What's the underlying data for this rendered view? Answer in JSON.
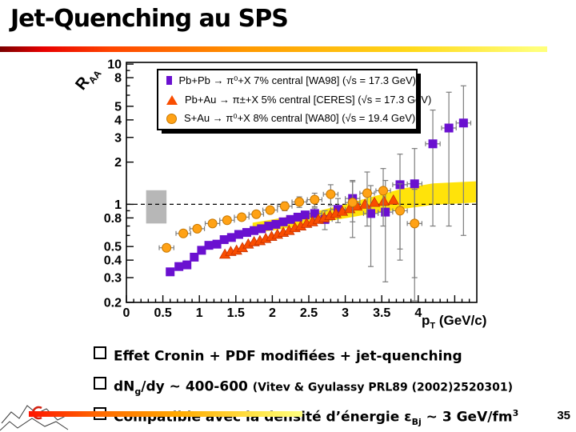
{
  "slide": {
    "title": "Jet-Quenching au SPS",
    "page_number": "35",
    "bullet_icon": "ballot-box",
    "bullets": [
      {
        "pre": "Effet Cronin + PDF modifiées +  jet-quenching"
      },
      {
        "pre": "dN",
        "sub": "g",
        "mid": "/dy ~ 400-600 ",
        "note": "(Vitev & Gyulassy PRL89 (2002)2520301)"
      },
      {
        "pre": "Compatible avec la densité d’énergie ε",
        "sub": "Bj",
        "mid": " ~ 3 GeV/fm",
        "sup": "3"
      }
    ],
    "colors": {
      "title_rule": [
        "#7a0000",
        "#e80000",
        "#ff9900",
        "#ffff7a"
      ],
      "bottom_rule": [
        "#ff1500",
        "#ffaa00",
        "#ffff80"
      ],
      "logo_red": "#d22211"
    }
  },
  "chart_data": {
    "type": "scatter",
    "title": "",
    "xlabel": "pT (GeV/c)",
    "ylabel": "RAA",
    "xlabel_main": "p",
    "xlabel_sub": "T",
    "xlabel_unit": " (GeV/c)",
    "ylabel_main": "R",
    "ylabel_sub": "AA",
    "xlim": [
      0,
      4.8
    ],
    "ylim": [
      0.2,
      10
    ],
    "yscale": "log",
    "grid": false,
    "legend_position": "top-left inside frame",
    "reference_line_y": 1,
    "error_bar_color": "#7d7d7d",
    "x_label_values": [
      0,
      0.5,
      1,
      1.5,
      2,
      2.5,
      3,
      3.5,
      4
    ],
    "x_tick_labels": [
      "0",
      "0.5",
      "1",
      "1.5",
      "2",
      "2.5",
      "3",
      "3.5",
      "4"
    ],
    "y_label_values": [
      10,
      8,
      5,
      4,
      3,
      2,
      1,
      0.8,
      0.5,
      0.4,
      0.3,
      0.2
    ],
    "y_tick_labels": [
      "10",
      "8",
      "5",
      "4",
      "3",
      "2",
      "1",
      "0.8",
      "0.5",
      "0.4",
      "0.3",
      "0.2"
    ],
    "y_minor_ticks": [
      0.2,
      0.3,
      0.4,
      0.5,
      0.6,
      0.7,
      0.8,
      0.9,
      1,
      2,
      3,
      4,
      5,
      6,
      7,
      8,
      9,
      10
    ],
    "sys_error_box": {
      "x0": 0.27,
      "x1": 0.55,
      "y0": 0.73,
      "y1": 1.26,
      "color": "#b7b7b7"
    },
    "theory_band": {
      "color": "#ffe30a",
      "x": [
        1.73,
        2.0,
        2.3,
        2.6,
        2.9,
        3.2,
        3.5,
        3.8,
        4.2,
        4.79
      ],
      "top": [
        0.74,
        0.78,
        0.83,
        0.89,
        0.97,
        1.07,
        1.18,
        1.3,
        1.41,
        1.46
      ],
      "bottom": [
        0.62,
        0.65,
        0.69,
        0.73,
        0.78,
        0.83,
        0.88,
        0.93,
        0.99,
        1.03
      ]
    },
    "series": [
      {
        "name": "Pb+Pb → π⁰+X  7%  central [WA98] (√s = 17.3 GeV)",
        "marker": "square",
        "color": "#6a10d0",
        "x": [
          0.6,
          0.72,
          0.83,
          0.93,
          1.03,
          1.13,
          1.24,
          1.34,
          1.44,
          1.54,
          1.65,
          1.75,
          1.85,
          1.95,
          2.05,
          2.15,
          2.25,
          2.35,
          2.45,
          2.58,
          2.72,
          2.9,
          3.1,
          3.35,
          3.55,
          3.75,
          3.95,
          4.2,
          4.42,
          4.62
        ],
        "y": [
          0.33,
          0.36,
          0.37,
          0.42,
          0.47,
          0.51,
          0.52,
          0.56,
          0.58,
          0.61,
          0.63,
          0.65,
          0.67,
          0.7,
          0.72,
          0.75,
          0.78,
          0.81,
          0.84,
          0.86,
          0.78,
          0.92,
          1.1,
          0.86,
          0.88,
          1.38,
          1.4,
          2.7,
          3.5,
          3.8
        ],
        "yerr": [
          0,
          0,
          0,
          0,
          0,
          0,
          0,
          0,
          0,
          0,
          0,
          0,
          0,
          0,
          0,
          0,
          0,
          0.03,
          0.05,
          0.08,
          0.12,
          0.18,
          0.35,
          0.5,
          0.6,
          0.9,
          1.1,
          2.0,
          2.8,
          3.2
        ],
        "xerr": [
          0.05,
          0.05,
          0.05,
          0.05,
          0.05,
          0.05,
          0.05,
          0.05,
          0.05,
          0.05,
          0.05,
          0.05,
          0.05,
          0.05,
          0.05,
          0.05,
          0.05,
          0.05,
          0.05,
          0.1,
          0.1,
          0.1,
          0.1,
          0.1,
          0.1,
          0.1,
          0.1,
          0.1,
          0.1,
          0.1
        ]
      },
      {
        "name": "Pb+Au → π±+X  5% central [CERES] (√s = 17.3 GeV)",
        "marker": "triangle",
        "color": "#f94d00",
        "x": [
          1.35,
          1.43,
          1.51,
          1.59,
          1.67,
          1.75,
          1.83,
          1.91,
          1.99,
          2.07,
          2.15,
          2.23,
          2.31,
          2.39,
          2.47,
          2.55,
          2.63,
          2.71,
          2.79,
          2.87,
          2.96,
          3.06,
          3.16,
          3.27,
          3.4,
          3.53,
          3.66
        ],
        "y": [
          0.44,
          0.46,
          0.47,
          0.49,
          0.52,
          0.54,
          0.55,
          0.57,
          0.59,
          0.61,
          0.63,
          0.65,
          0.68,
          0.7,
          0.73,
          0.75,
          0.78,
          0.8,
          0.83,
          0.86,
          0.89,
          0.93,
          0.97,
          1.0,
          1.03,
          1.05,
          1.07
        ]
      },
      {
        "name": "S+Au → π⁰+X 8%  central [WA80] (√s = 19.4 GeV)",
        "marker": "circle",
        "color": "#ffa216",
        "x": [
          0.55,
          0.78,
          0.97,
          1.18,
          1.38,
          1.58,
          1.78,
          1.97,
          2.17,
          2.37,
          2.58,
          2.8,
          3.1,
          3.3,
          3.52,
          3.75,
          3.95
        ],
        "y": [
          0.49,
          0.62,
          0.67,
          0.73,
          0.77,
          0.81,
          0.85,
          0.91,
          0.97,
          1.04,
          1.08,
          1.18,
          1.03,
          1.2,
          1.25,
          0.9,
          0.73
        ],
        "yerr": [
          0,
          0,
          0,
          0.03,
          0.03,
          0.04,
          0.04,
          0.05,
          0.07,
          0.09,
          0.12,
          0.2,
          0.45,
          0.5,
          0.55,
          0.5,
          0.55
        ],
        "xerr": 0.1
      }
    ]
  }
}
